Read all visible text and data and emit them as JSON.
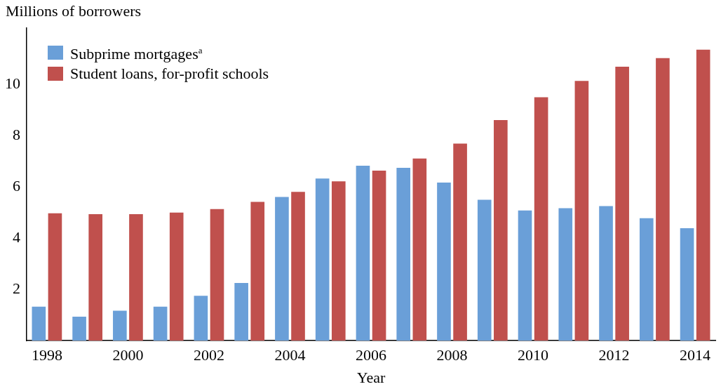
{
  "chart_data": {
    "type": "bar",
    "ylabel": "Millions of borrowers",
    "xlabel": "Year",
    "categories": [
      "1998",
      null,
      "2000",
      null,
      "2002",
      null,
      "2004",
      null,
      "2006",
      null,
      "2008",
      null,
      "2010",
      null,
      "2012",
      null,
      "2014"
    ],
    "series": [
      {
        "name": "Subprime mortgages$^{a}$",
        "color": "#6a9fd8",
        "values": [
          1.33,
          0.94,
          1.17,
          1.33,
          1.75,
          2.25,
          5.61,
          6.33,
          6.83,
          6.75,
          6.17,
          5.5,
          5.08,
          5.17,
          5.25,
          4.78,
          4.39
        ]
      },
      {
        "name": "Student loans, for-profit schools",
        "color": "#c0504d",
        "values": [
          4.97,
          4.94,
          4.94,
          5.0,
          5.14,
          5.42,
          5.81,
          6.22,
          6.64,
          7.11,
          7.69,
          8.61,
          9.5,
          10.14,
          10.69,
          11.03,
          11.36
        ]
      }
    ],
    "ylim": [
      0,
      12.2
    ],
    "yticks": [
      2,
      4,
      6,
      8,
      10
    ],
    "grid": false,
    "legend": "top left"
  }
}
